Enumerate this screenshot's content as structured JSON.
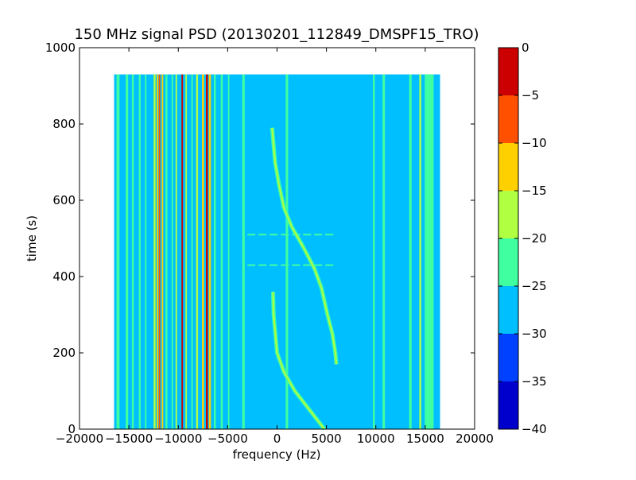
{
  "chart_data": {
    "type": "heatmap",
    "title": "150 MHz signal PSD (20130201_112849_DMSPF15_TRO)",
    "xlabel": "frequency (Hz)",
    "ylabel": "time (s)",
    "xlim": [
      -20000,
      20000
    ],
    "ylim": [
      0,
      1000
    ],
    "xticks": [
      -20000,
      -15000,
      -10000,
      -5000,
      0,
      5000,
      10000,
      15000,
      20000
    ],
    "yticks": [
      0,
      200,
      400,
      600,
      800,
      1000
    ],
    "data_extent": {
      "x": [
        -16500,
        16500
      ],
      "y": [
        0,
        930
      ]
    },
    "background_level": -27.5,
    "colorbar": {
      "levels": [
        -40,
        -35,
        -30,
        -25,
        -20,
        -15,
        -10,
        -5,
        0
      ],
      "colors": [
        "#0000cc",
        "#0040ff",
        "#00bfff",
        "#40ffa0",
        "#b0ff40",
        "#ffd000",
        "#ff5000",
        "#cc0000"
      ],
      "ticks": [
        "0",
        "−5",
        "−10",
        "−15",
        "−20",
        "−25",
        "−30",
        "−35",
        "−40"
      ]
    },
    "vertical_lines": [
      {
        "x": -16100,
        "level": -22.5,
        "width": 300
      },
      {
        "x": -15200,
        "level": -22.5,
        "width": 250
      },
      {
        "x": -14600,
        "level": -22.5,
        "width": 200
      },
      {
        "x": -13900,
        "level": -22.5,
        "width": 200
      },
      {
        "x": -13300,
        "level": -22.5,
        "width": 150
      },
      {
        "x": -12400,
        "level": -17.5,
        "width": 200
      },
      {
        "x": -12100,
        "level": -12.5,
        "width": 150
      },
      {
        "x": -11900,
        "level": -7.5,
        "width": 150
      },
      {
        "x": -11600,
        "level": -12.5,
        "width": 150
      },
      {
        "x": -11200,
        "level": -22.5,
        "width": 200
      },
      {
        "x": -10600,
        "level": -22.5,
        "width": 150
      },
      {
        "x": -10200,
        "level": -17.5,
        "width": 150
      },
      {
        "x": -9600,
        "level": -2.5,
        "width": 150
      },
      {
        "x": -9200,
        "level": -17.5,
        "width": 150
      },
      {
        "x": -8600,
        "level": -22.5,
        "width": 150
      },
      {
        "x": -8100,
        "level": -17.5,
        "width": 200
      },
      {
        "x": -7500,
        "level": -12.5,
        "width": 200
      },
      {
        "x": -7100,
        "level": -2.5,
        "width": 200
      },
      {
        "x": -6800,
        "level": -12.5,
        "width": 200
      },
      {
        "x": -6300,
        "level": -22.5,
        "width": 200
      },
      {
        "x": -5600,
        "level": -22.5,
        "width": 200
      },
      {
        "x": -4900,
        "level": -22.5,
        "width": 150
      },
      {
        "x": -3400,
        "level": -22.5,
        "width": 250
      },
      {
        "x": 1000,
        "level": -22.5,
        "width": 250
      },
      {
        "x": 9800,
        "level": -22.5,
        "width": 200
      },
      {
        "x": 10800,
        "level": -22.5,
        "width": 250
      },
      {
        "x": 13500,
        "level": -22.5,
        "width": 250
      },
      {
        "x": 14500,
        "level": -17.5,
        "width": 200
      },
      {
        "x": 15400,
        "level": -22.5,
        "width": 900
      }
    ],
    "sweeps": [
      {
        "level": -17.5,
        "points": [
          [
            -400,
            360
          ],
          [
            -350,
            300
          ],
          [
            0,
            200
          ],
          [
            700,
            150
          ],
          [
            1800,
            100
          ],
          [
            3000,
            60
          ],
          [
            3900,
            30
          ],
          [
            4800,
            0
          ]
        ]
      },
      {
        "level": -17.5,
        "points": [
          [
            -500,
            790
          ],
          [
            -400,
            760
          ],
          [
            -200,
            700
          ],
          [
            200,
            640
          ],
          [
            700,
            580
          ],
          [
            1500,
            530
          ],
          [
            2600,
            480
          ],
          [
            3800,
            420
          ],
          [
            4500,
            370
          ],
          [
            5100,
            300
          ],
          [
            5600,
            250
          ],
          [
            5900,
            200
          ],
          [
            6000,
            170
          ]
        ]
      }
    ],
    "horizontal_lines": [
      {
        "y": 510,
        "x": [
          -3000,
          6000
        ],
        "level": -22.5
      },
      {
        "y": 430,
        "x": [
          -3000,
          6000
        ],
        "level": -22.5
      }
    ]
  }
}
